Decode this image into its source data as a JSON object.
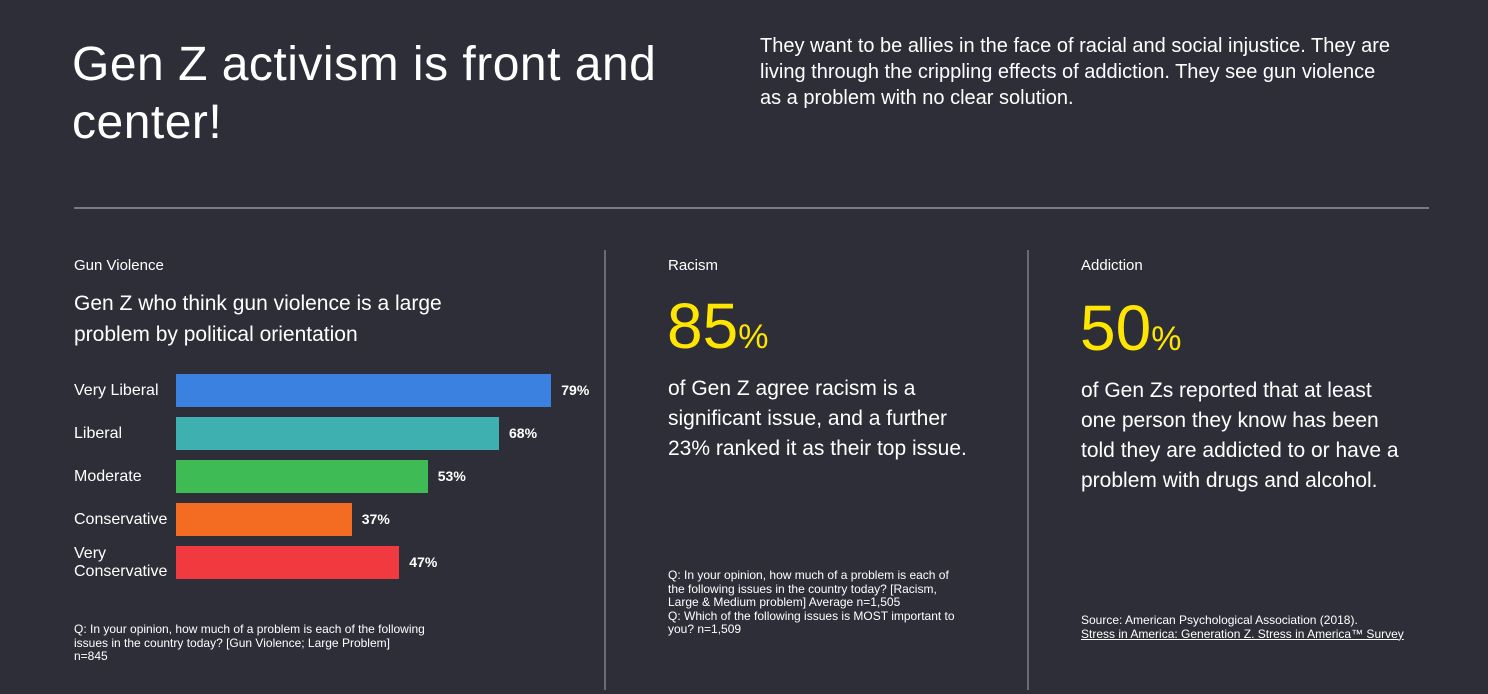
{
  "header": {
    "title": "Gen Z activism is front and center!",
    "intro": "They want to be allies in the face of racial and social injustice. They are living through the crippling effects of addiction. They see gun violence as a problem with no clear solution."
  },
  "gun_violence": {
    "label": "Gun Violence",
    "title": "Gen Z who think gun violence is a large problem by political orientation",
    "footnote_line1": "Q: In your opinion, how much of a problem is each of the following",
    "footnote_line2": "issues in the country today? [Gun Violence; Large Problem]",
    "footnote_line3": "n=845"
  },
  "chart_data": {
    "type": "bar",
    "orientation": "horizontal",
    "title": "Gen Z who think gun violence is a large problem by political orientation",
    "categories": [
      "Very Liberal",
      "Liberal",
      "Moderate",
      "Conservative",
      "Very Conservative"
    ],
    "values": [
      79,
      68,
      53,
      37,
      47
    ],
    "value_labels": [
      "79%",
      "68%",
      "53%",
      "37%",
      "47%"
    ],
    "colors": [
      "#3b82e0",
      "#3fb0b0",
      "#3fbb55",
      "#f36c21",
      "#f13a3f"
    ],
    "unit": "%",
    "xlim": [
      0,
      100
    ],
    "grid": false
  },
  "racism": {
    "label": "Racism",
    "stat_number": "85",
    "stat_unit": "%",
    "text": "of Gen Z agree racism is a significant issue, and a further 23% ranked it as their top issue.",
    "footnote_line1": "Q: In your opinion, how much of a problem is each of",
    "footnote_line2": "the following issues in the country today? [Racism,",
    "footnote_line3": "Large & Medium problem] Average n=1,505",
    "footnote_line4": "Q: Which of the following issues is MOST important to",
    "footnote_line5": "you?  n=1,509"
  },
  "addiction": {
    "label": "Addiction",
    "stat_number": "50",
    "stat_unit": "%",
    "text": "of Gen Zs reported that at least one person they know has been told they are addicted to or have a problem with drugs and alcohol.",
    "source_line1": "Source: American Psychological Association (2018).",
    "source_line2": "Stress in America: Generation Z. Stress in America™ Survey"
  },
  "colors": {
    "background": "#2e2e38",
    "accent": "#ffe600"
  }
}
